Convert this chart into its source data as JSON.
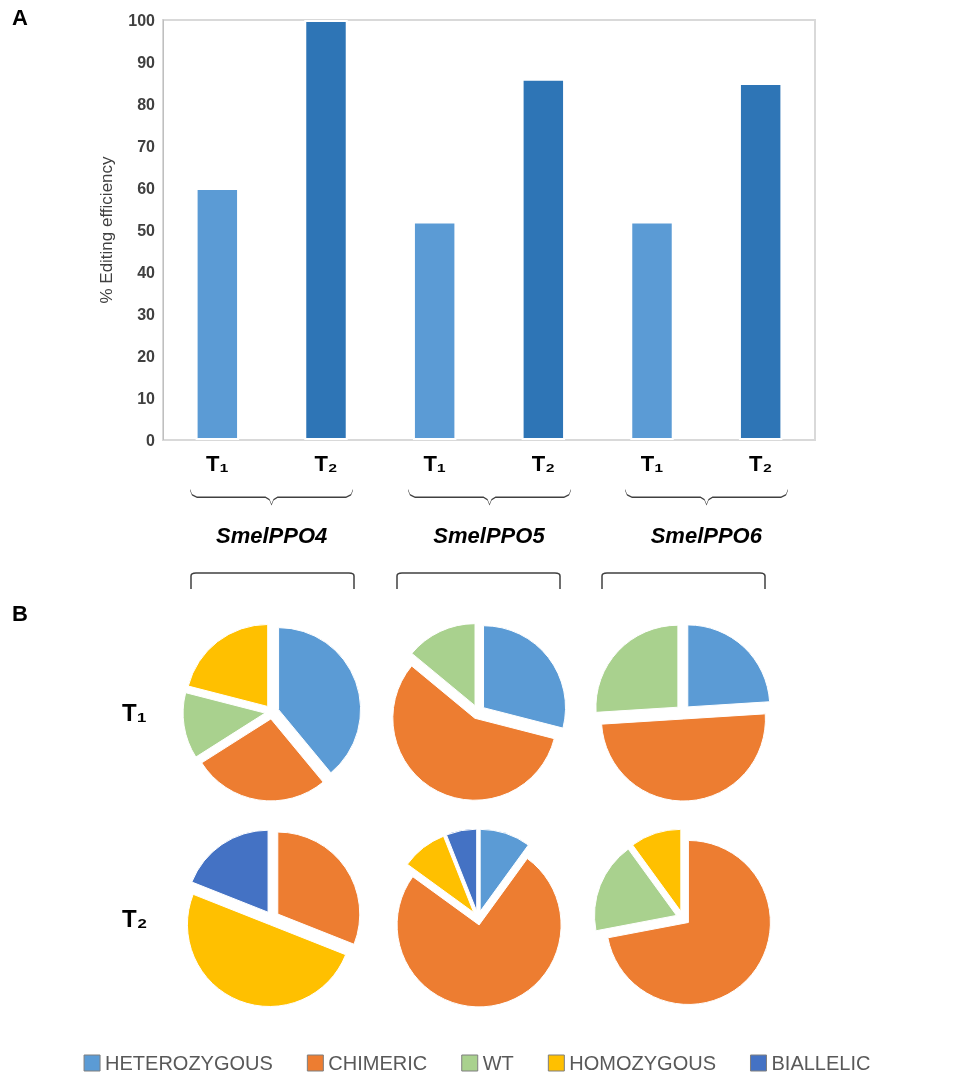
{
  "chart_data": [
    {
      "type": "bar",
      "ylabel": "% Editing efficiency",
      "categories": [
        "T₁",
        "T₂",
        "T₁",
        "T₂",
        "T₁",
        "T₂"
      ],
      "values": [
        60,
        100,
        52,
        86,
        52,
        85
      ],
      "colors": [
        "#5b9bd5",
        "#2e75b6",
        "#5b9bd5",
        "#2e75b6",
        "#5b9bd5",
        "#2e75b6"
      ],
      "ylim": [
        0,
        100
      ],
      "yticks": [
        0,
        10,
        20,
        30,
        40,
        50,
        60,
        70,
        80,
        90,
        100
      ],
      "grid": false,
      "legend": false,
      "annotations": [
        "A",
        "SmelPPO4",
        "SmelPPO5",
        "SmelPPO6"
      ]
    },
    {
      "type": "pie",
      "categories": [
        "HETEROZYGOUS",
        "CHIMERIC",
        "WT",
        "HOMOZYGOUS",
        "BIALLELIC"
      ],
      "colors": [
        "#5b9bd5",
        "#ed7d31",
        "#a9d18e",
        "#ffc000",
        "#4472c4"
      ],
      "legend": "bottom",
      "annotations": [
        "B",
        "T₁",
        "T₂"
      ],
      "series": [
        {
          "values": [
            39,
            27,
            13,
            21,
            null
          ]
        },
        {
          "values": [
            29,
            57,
            14,
            null,
            null
          ]
        },
        {
          "values": [
            24,
            50,
            26,
            null,
            null
          ]
        },
        {
          "values": [
            null,
            31,
            null,
            50,
            19
          ]
        },
        {
          "values": [
            10,
            75,
            null,
            9,
            6
          ]
        },
        {
          "values": [
            null,
            72,
            18,
            10,
            null
          ]
        }
      ]
    }
  ]
}
